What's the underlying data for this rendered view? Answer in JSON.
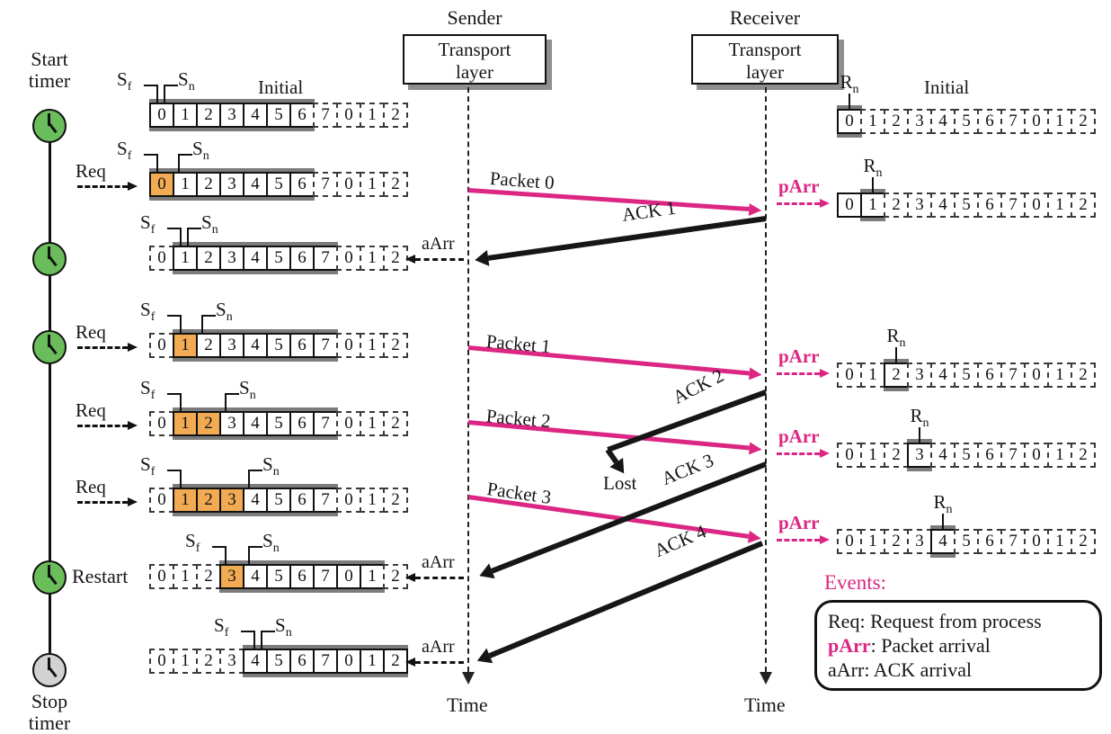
{
  "header": {
    "sender": "Sender",
    "receiver": "Receiver",
    "transport_line1": "Transport",
    "transport_line2": "layer",
    "time": "Time"
  },
  "timer": {
    "start_line1": "Start",
    "start_line2": "timer",
    "stop_line1": "Stop",
    "stop_line2": "timer",
    "restart": "Restart"
  },
  "markers": {
    "sf_base": "S",
    "sf_sub": "f",
    "sn_base": "S",
    "sn_sub": "n",
    "rn_base": "R",
    "rn_sub": "n",
    "initial": "Initial"
  },
  "events": {
    "req": "Req",
    "parr": "pArr",
    "aarr": "aArr",
    "lost": "Lost"
  },
  "cell_values": [
    "0",
    "1",
    "2",
    "3",
    "4",
    "5",
    "6",
    "7",
    "0",
    "1",
    "2"
  ],
  "sender_rows": [
    {
      "name": "initial",
      "states": "wwwwwwwdddd"
    },
    {
      "name": "after-req-0",
      "states": "owwwwwwdddd"
    },
    {
      "name": "after-ack-1",
      "states": "dwwwwwwwddd"
    },
    {
      "name": "after-req-1",
      "states": "dowwwwwwddd"
    },
    {
      "name": "after-req-2",
      "states": "doowwwwwddd"
    },
    {
      "name": "after-req-3",
      "states": "dooowwwwddd"
    },
    {
      "name": "restart-after-ack-3",
      "states": "dddowwwwwwd"
    },
    {
      "name": "after-ack-4",
      "states": "ddddwwwwwww"
    }
  ],
  "receiver_rows": [
    {
      "name": "initial",
      "states": "rdddddddddd"
    },
    {
      "name": "after-packet-0",
      "states": "srddddddddd"
    },
    {
      "name": "after-packet-1",
      "states": "ddrdddddddd"
    },
    {
      "name": "after-packet-2",
      "states": "dddrddddddd"
    },
    {
      "name": "after-packet-3",
      "states": "ddddrdddddd"
    }
  ],
  "packet_arrows": [
    {
      "label": "Packet 0"
    },
    {
      "label": "Packet 1"
    },
    {
      "label": "Packet 2"
    },
    {
      "label": "Packet 3"
    }
  ],
  "ack_arrows": [
    {
      "label": "ACK 1"
    },
    {
      "label": "ACK 2"
    },
    {
      "label": "ACK 3"
    },
    {
      "label": "ACK 4"
    }
  ],
  "legend": {
    "title": "Events:",
    "items": [
      {
        "key": "Req",
        "desc": ": Request from process"
      },
      {
        "key": "pArr",
        "desc": ": Packet arrival"
      },
      {
        "key": "aArr",
        "desc": ": ACK arrival"
      }
    ]
  },
  "colors": {
    "packet_pink": "#db2783",
    "window_orange": "#f2ab52",
    "timer_green": "#6bbd5b",
    "timer_stop_gray": "#d2d2d2",
    "window_shadow_gray": "#7c7c7c"
  }
}
